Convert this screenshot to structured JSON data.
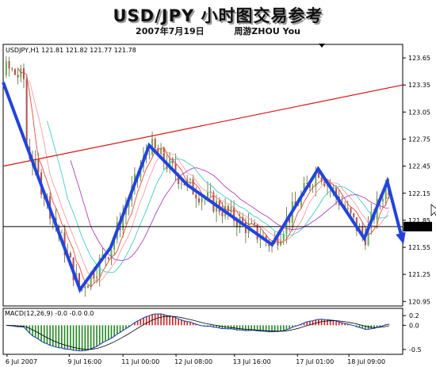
{
  "header": {
    "title": "USD/JPY 小时图交易参考",
    "date": "2007年7月19日",
    "author": "周游ZHOU You"
  },
  "chart_data": [
    {
      "type": "line",
      "symbol_header": "USDJPY,H1  121.81 121.82 121.77 121.78",
      "ylim": [
        120.9,
        123.8
      ],
      "y_ticks": [
        "123.65",
        "123.35",
        "123.05",
        "122.75",
        "122.45",
        "122.15",
        "121.85",
        "121.55",
        "121.25",
        "120.95"
      ],
      "x_ticks": [
        "6 Jul 2007",
        "9 Jul 16:00",
        "11 Jul 00:00",
        "12 Jul 08:00",
        "13 Jul 16:00",
        "17 Jul 01:00",
        "18 Jul 09:00"
      ],
      "current_price": "121.78",
      "series": [
        {
          "name": "",
          "color": "#2244dd",
          "x": [
            0,
            10,
            14,
            19,
            24,
            35,
            41,
            47,
            50,
            52
          ],
          "y": [
            123.38,
            121.08,
            121.55,
            122.68,
            122.24,
            121.58,
            122.42,
            121.65,
            122.28,
            121.62
          ]
        },
        {
          "name": "",
          "color": "#dd1111",
          "x": [
            0,
            52
          ],
          "y": [
            122.45,
            123.35
          ]
        }
      ]
    },
    {
      "type": "bar",
      "title": "MACD(12,26,9) -0.0 -0.0 0.0",
      "ylim": [
        -0.6,
        0.35
      ],
      "y_ticks": [
        "0.2",
        "0.0",
        "-0.5"
      ]
    }
  ],
  "colors": {
    "trend_arrow": "#2244dd",
    "trendline": "#dd1111",
    "price_label_bg": "#000000",
    "macd_up": "#cc2222",
    "macd_down": "#228822"
  }
}
